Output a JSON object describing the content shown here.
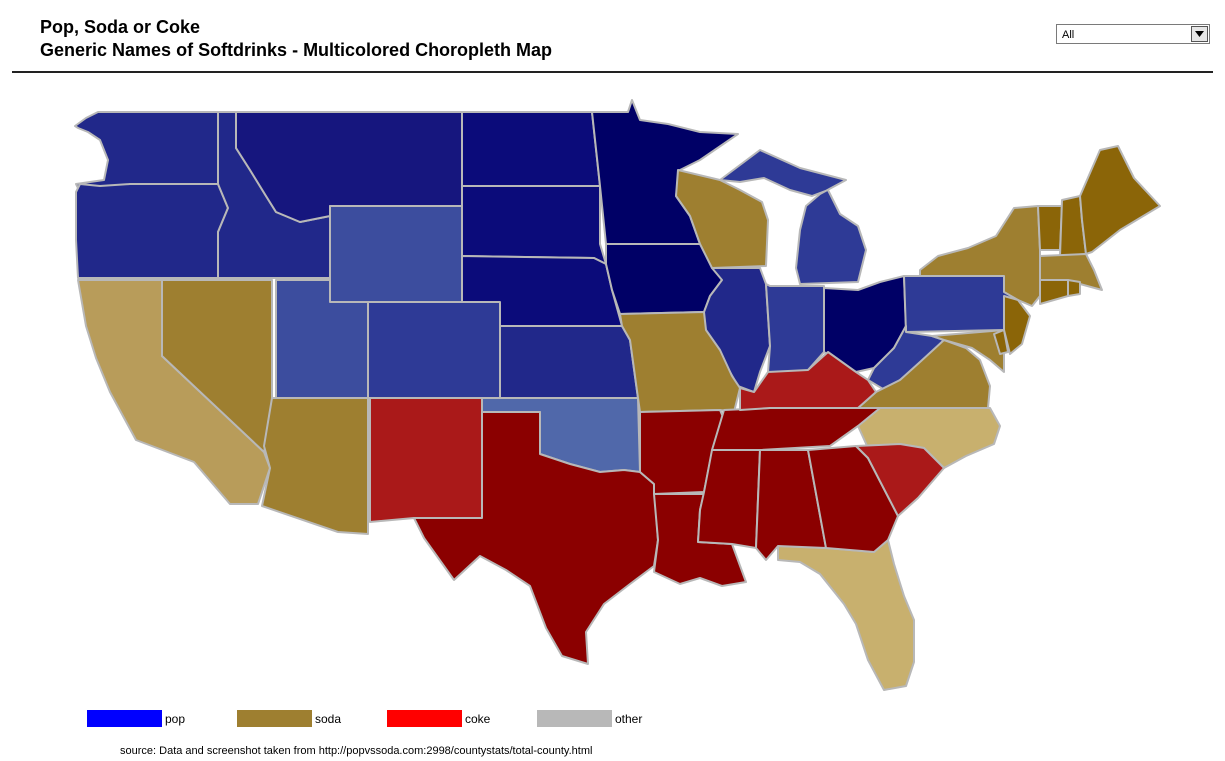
{
  "header": {
    "title_line1": "Pop, Soda or Coke",
    "title_line2": "Generic Names of Softdrinks - Multicolored Choropleth Map"
  },
  "filter": {
    "selected": "All",
    "icon": "chevron-down-icon"
  },
  "colors": {
    "pop_darkest": "#000066",
    "pop_dark": "#0b0b7a",
    "pop": "#16167e",
    "pop_mid": "#21288a",
    "pop_light": "#2e3a96",
    "pop_lighter": "#3c4d9e",
    "pop_lightest": "#5068aa",
    "soda": "#9e7f30",
    "soda_dark": "#8b6508",
    "soda_light": "#ab9048",
    "soda_lighter": "#b89c5a",
    "soda_lightest": "#c8b06e",
    "coke": "#8b0000",
    "coke_light": "#aa1919",
    "border": "#b8b8b8"
  },
  "regions": [
    {
      "name": "Washington",
      "category": "pop"
    },
    {
      "name": "Oregon",
      "category": "pop"
    },
    {
      "name": "Idaho",
      "category": "pop"
    },
    {
      "name": "Montana",
      "category": "pop"
    },
    {
      "name": "Wyoming",
      "category": "pop"
    },
    {
      "name": "Utah",
      "category": "pop"
    },
    {
      "name": "Colorado",
      "category": "pop"
    },
    {
      "name": "North Dakota",
      "category": "pop"
    },
    {
      "name": "South Dakota",
      "category": "pop"
    },
    {
      "name": "Nebraska",
      "category": "pop"
    },
    {
      "name": "Kansas",
      "category": "pop"
    },
    {
      "name": "Oklahoma",
      "category": "pop"
    },
    {
      "name": "Minnesota",
      "category": "pop"
    },
    {
      "name": "Iowa",
      "category": "pop"
    },
    {
      "name": "Michigan",
      "category": "pop"
    },
    {
      "name": "Illinois",
      "category": "pop"
    },
    {
      "name": "Indiana",
      "category": "pop"
    },
    {
      "name": "Ohio",
      "category": "pop"
    },
    {
      "name": "Pennsylvania",
      "category": "pop"
    },
    {
      "name": "West Virginia",
      "category": "pop"
    },
    {
      "name": "California",
      "category": "soda"
    },
    {
      "name": "Nevada",
      "category": "soda"
    },
    {
      "name": "Arizona",
      "category": "soda"
    },
    {
      "name": "Missouri",
      "category": "soda"
    },
    {
      "name": "Wisconsin",
      "category": "soda"
    },
    {
      "name": "New York",
      "category": "soda"
    },
    {
      "name": "Virginia",
      "category": "soda"
    },
    {
      "name": "Maryland",
      "category": "soda"
    },
    {
      "name": "Delaware",
      "category": "soda"
    },
    {
      "name": "New Jersey",
      "category": "soda"
    },
    {
      "name": "Vermont",
      "category": "soda"
    },
    {
      "name": "New Hampshire",
      "category": "soda"
    },
    {
      "name": "Maine",
      "category": "soda"
    },
    {
      "name": "Massachusetts",
      "category": "soda"
    },
    {
      "name": "Connecticut",
      "category": "soda"
    },
    {
      "name": "Rhode Island",
      "category": "soda"
    },
    {
      "name": "North Carolina",
      "category": "soda"
    },
    {
      "name": "Florida",
      "category": "soda"
    },
    {
      "name": "New Mexico",
      "category": "coke"
    },
    {
      "name": "Texas",
      "category": "coke"
    },
    {
      "name": "Arkansas",
      "category": "coke"
    },
    {
      "name": "Louisiana",
      "category": "coke"
    },
    {
      "name": "Mississippi",
      "category": "coke"
    },
    {
      "name": "Alabama",
      "category": "coke"
    },
    {
      "name": "Georgia",
      "category": "coke"
    },
    {
      "name": "Tennessee",
      "category": "coke"
    },
    {
      "name": "Kentucky",
      "category": "coke"
    },
    {
      "name": "South Carolina",
      "category": "coke"
    }
  ],
  "legend": [
    {
      "label": "pop",
      "color": "#0000ff"
    },
    {
      "label": "soda",
      "color": "#9e7f30"
    },
    {
      "label": "coke",
      "color": "#ff0000"
    },
    {
      "label": "other",
      "color": "#b8b8b8"
    }
  ],
  "source": "source:  Data and screenshot taken from http://popvssoda.com:2998/countystats/total-county.html"
}
